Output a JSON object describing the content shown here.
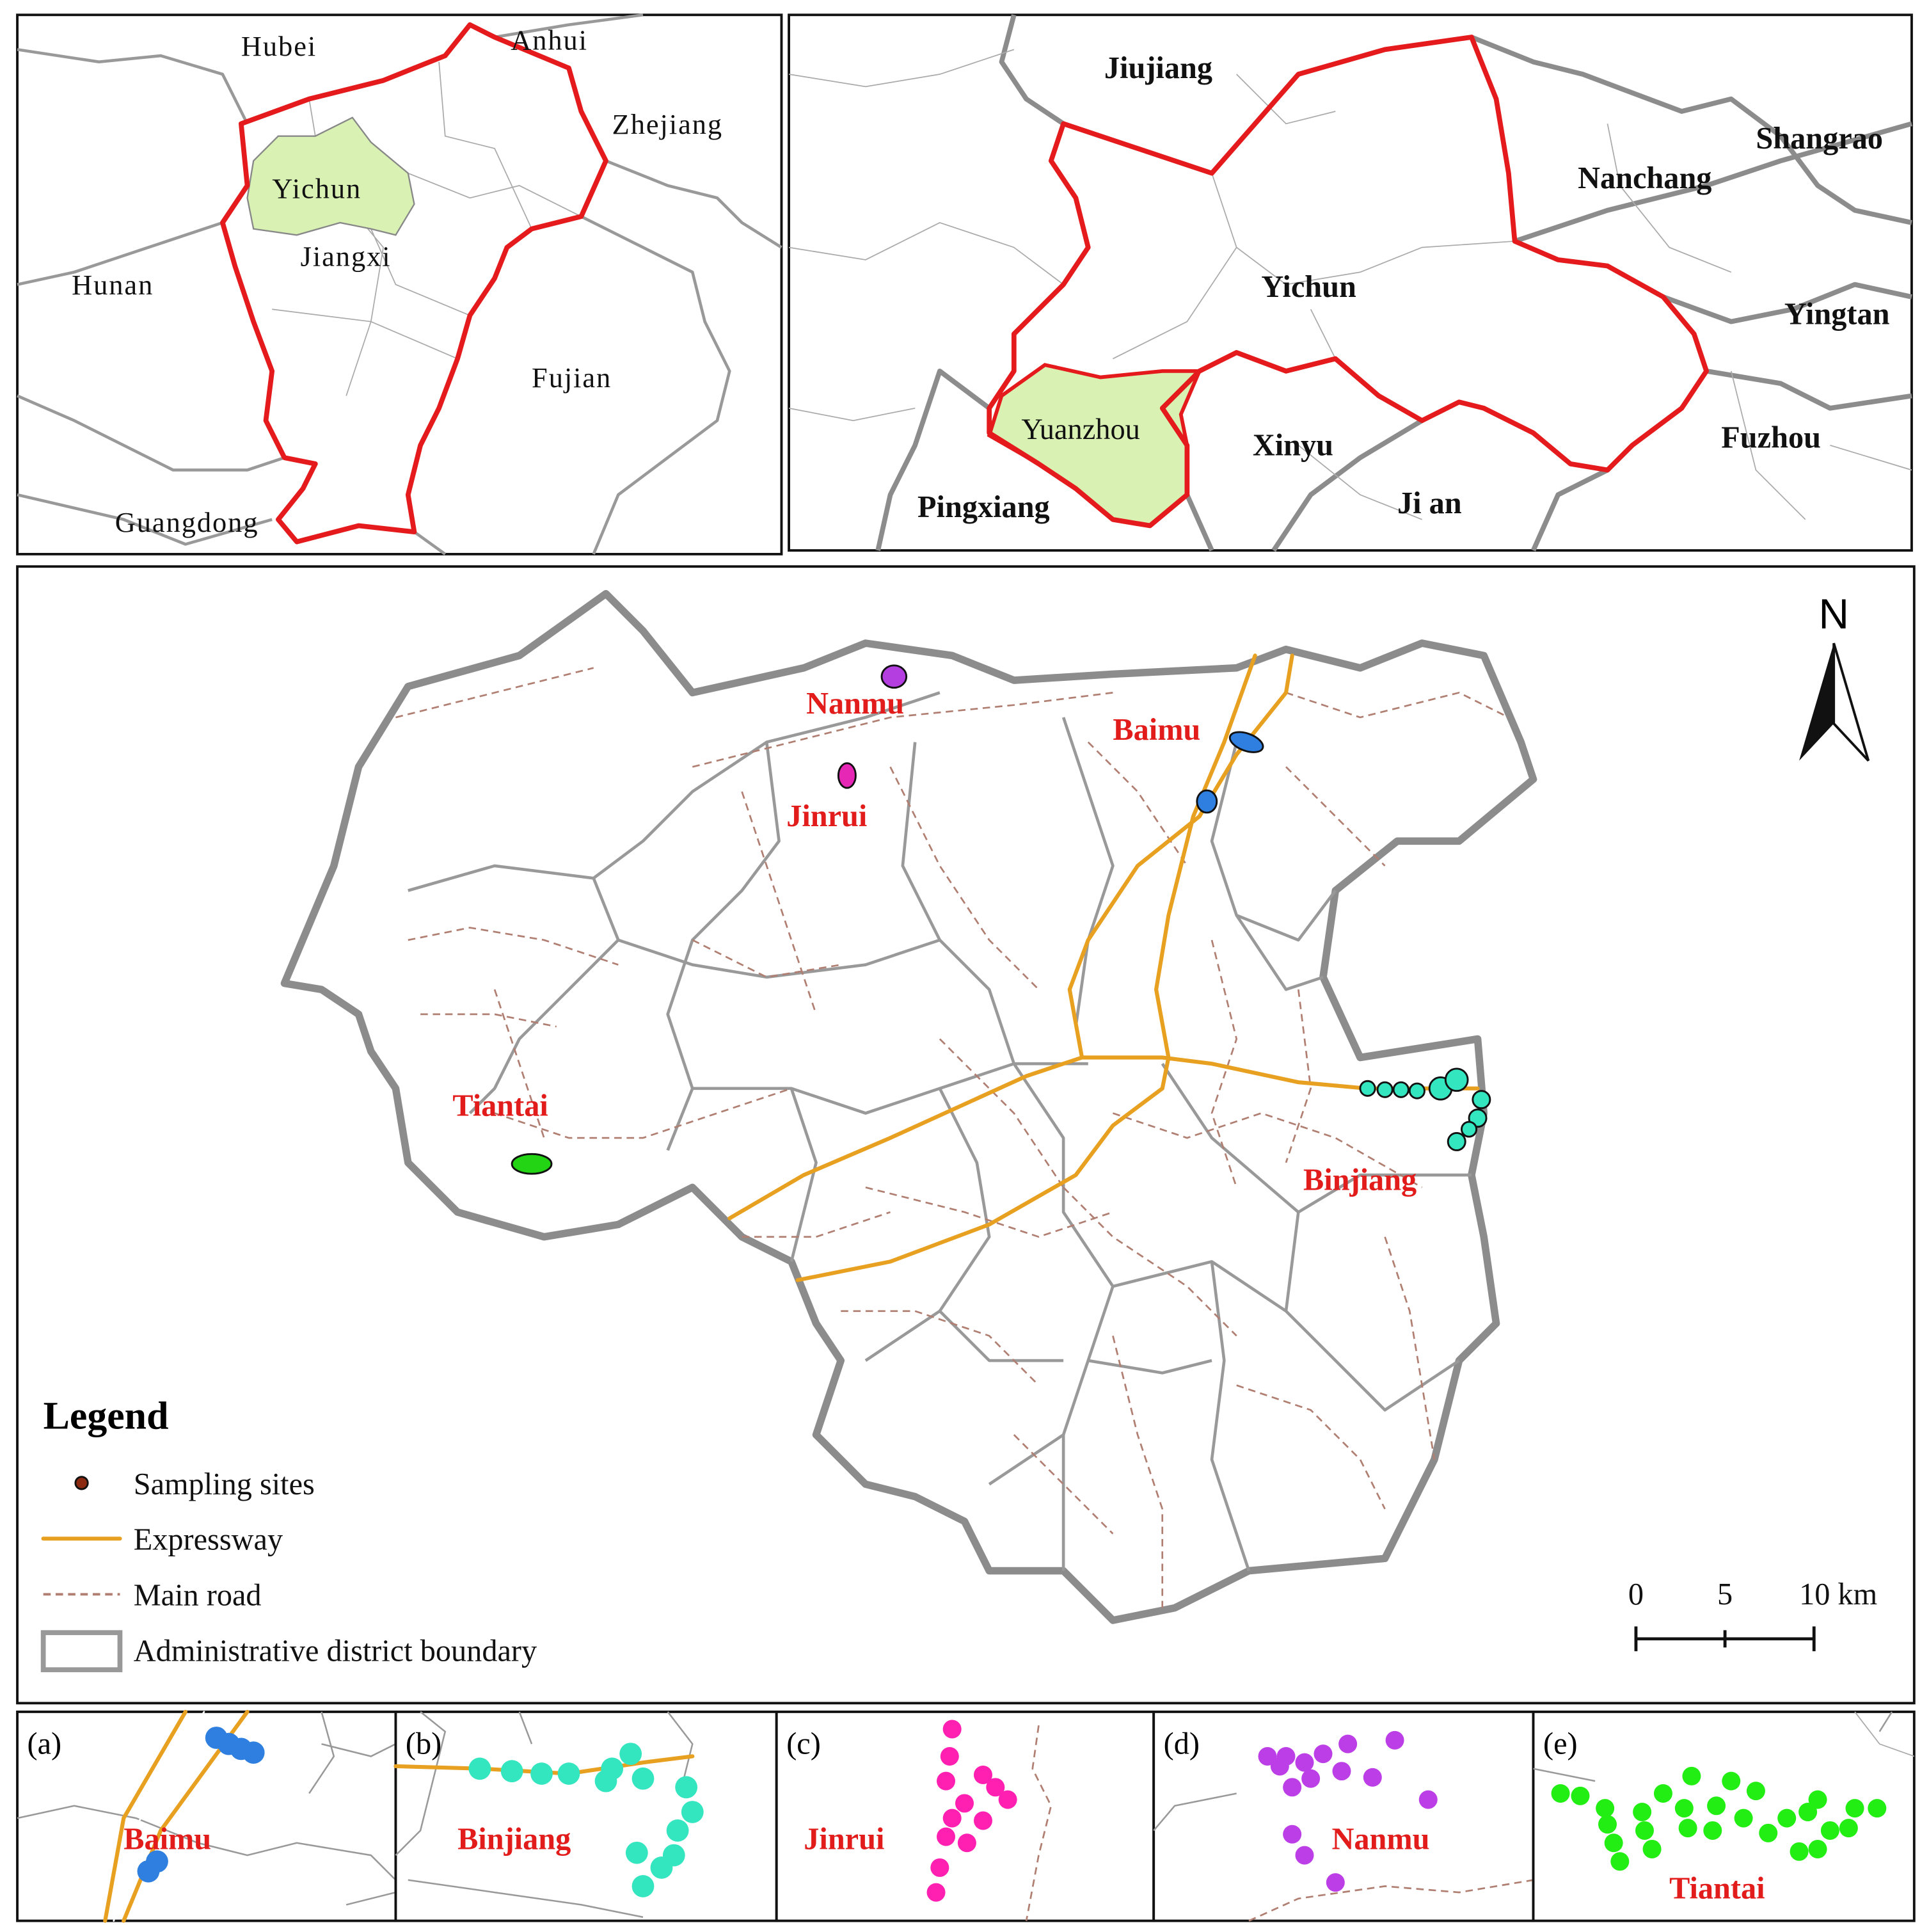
{
  "inset_province": {
    "labels": [
      "Hubei",
      "Anhui",
      "Zhejiang",
      "Yichun",
      "Jiangxi",
      "Hunan",
      "Fujian",
      "Guangdong"
    ]
  },
  "inset_city": {
    "labels": [
      "Jiujiang",
      "Shangrao",
      "Nanchang",
      "Yichun",
      "Yingtan",
      "Yuanzhou",
      "Xinyu",
      "Fuzhou",
      "Pingxiang",
      "Ji an"
    ]
  },
  "main_map": {
    "sites": [
      "Nanmu",
      "Baimu",
      "Jinrui",
      "Tiantai",
      "Binjiang"
    ],
    "north": "N",
    "legend": {
      "title": "Legend",
      "items": [
        "Sampling sites",
        "Expressway",
        "Main road",
        "Administrative district boundary"
      ]
    },
    "scale_bar": [
      "0",
      "5",
      "10 km"
    ]
  },
  "detail_panels": [
    {
      "tag": "(a)",
      "site": "Baimu"
    },
    {
      "tag": "(b)",
      "site": "Binjiang"
    },
    {
      "tag": "(c)",
      "site": "Jinrui"
    },
    {
      "tag": "(d)",
      "site": "Nanmu"
    },
    {
      "tag": "(e)",
      "site": "Tiantai"
    }
  ]
}
